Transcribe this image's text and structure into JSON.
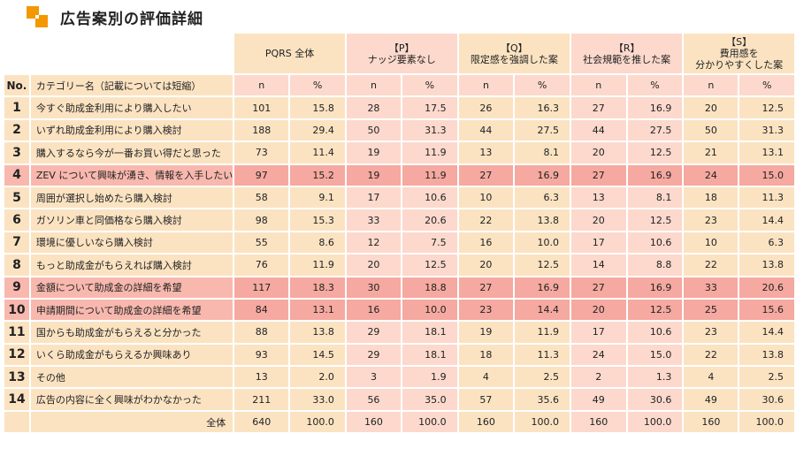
{
  "title": "広告案別の評価詳細",
  "columns": {
    "no": "No.",
    "category": "カテゴリー名（記載については短縮）",
    "groups": [
      {
        "line1": "PQRS 全体",
        "line2": ""
      },
      {
        "line1": "【P】",
        "line2": "ナッジ要素なし"
      },
      {
        "line1": "【Q】",
        "line2": "限定感を強調した案"
      },
      {
        "line1": "【R】",
        "line2": "社会規範を推した案"
      },
      {
        "line1": "【S】",
        "line2": "費用感を\n分かりやすくした案"
      }
    ],
    "n": "n",
    "pct": "%"
  },
  "rows": [
    {
      "no": "1",
      "label": "今すぐ助成金利用により購入したい",
      "vals": [
        "101",
        "15.8",
        "28",
        "17.5",
        "26",
        "16.3",
        "27",
        "16.9",
        "20",
        "12.5"
      ]
    },
    {
      "no": "2",
      "label": "いずれ助成金利用により購入検討",
      "vals": [
        "188",
        "29.4",
        "50",
        "31.3",
        "44",
        "27.5",
        "44",
        "27.5",
        "50",
        "31.3"
      ]
    },
    {
      "no": "3",
      "label": "購入するなら今が一番お買い得だと思った",
      "vals": [
        "73",
        "11.4",
        "19",
        "11.9",
        "13",
        "8.1",
        "20",
        "12.5",
        "21",
        "13.1"
      ]
    },
    {
      "no": "4",
      "label": "ZEV について興味が湧き、情報を入手したい",
      "vals": [
        "97",
        "15.2",
        "19",
        "11.9",
        "27",
        "16.9",
        "27",
        "16.9",
        "24",
        "15.0"
      ]
    },
    {
      "no": "5",
      "label": "周囲が選択し始めたら購入検討",
      "vals": [
        "58",
        "9.1",
        "17",
        "10.6",
        "10",
        "6.3",
        "13",
        "8.1",
        "18",
        "11.3"
      ]
    },
    {
      "no": "6",
      "label": "ガソリン車と同価格なら購入検討",
      "vals": [
        "98",
        "15.3",
        "33",
        "20.6",
        "22",
        "13.8",
        "20",
        "12.5",
        "23",
        "14.4"
      ]
    },
    {
      "no": "7",
      "label": "環境に優しいなら購入検討",
      "vals": [
        "55",
        "8.6",
        "12",
        "7.5",
        "16",
        "10.0",
        "17",
        "10.6",
        "10",
        "6.3"
      ]
    },
    {
      "no": "8",
      "label": "もっと助成金がもらえれば購入検討",
      "vals": [
        "76",
        "11.9",
        "20",
        "12.5",
        "20",
        "12.5",
        "14",
        "8.8",
        "22",
        "13.8"
      ]
    },
    {
      "no": "9",
      "label": "金額について助成金の詳細を希望",
      "vals": [
        "117",
        "18.3",
        "30",
        "18.8",
        "27",
        "16.9",
        "27",
        "16.9",
        "33",
        "20.6"
      ]
    },
    {
      "no": "10",
      "label": "申請期間について助成金の詳細を希望",
      "vals": [
        "84",
        "13.1",
        "16",
        "10.0",
        "23",
        "14.4",
        "20",
        "12.5",
        "25",
        "15.6"
      ]
    },
    {
      "no": "11",
      "label": "国からも助成金がもらえると分かった",
      "vals": [
        "88",
        "13.8",
        "29",
        "18.1",
        "19",
        "11.9",
        "17",
        "10.6",
        "23",
        "14.4"
      ]
    },
    {
      "no": "12",
      "label": "いくら助成金がもらえるか興味あり",
      "vals": [
        "93",
        "14.5",
        "29",
        "18.1",
        "18",
        "11.3",
        "24",
        "15.0",
        "22",
        "13.8"
      ]
    },
    {
      "no": "13",
      "label": "その他",
      "vals": [
        "13",
        "2.0",
        "3",
        "1.9",
        "4",
        "2.5",
        "2",
        "1.3",
        "4",
        "2.5"
      ]
    },
    {
      "no": "14",
      "label": "広告の内容に全く興味がわかなかった",
      "vals": [
        "211",
        "33.0",
        "56",
        "35.0",
        "57",
        "35.6",
        "49",
        "30.6",
        "49",
        "30.6"
      ]
    }
  ],
  "total": {
    "label": "全体",
    "vals": [
      "640",
      "100.0",
      "160",
      "100.0",
      "160",
      "100.0",
      "160",
      "100.0",
      "160",
      "100.0"
    ]
  },
  "highlighted_rows": [
    "4",
    "9",
    "10"
  ],
  "colors": {
    "base_a": "#fbe3c2",
    "base_b": "#fcd9cc",
    "highlight": "#f8b8ae",
    "logo": "#f39800"
  }
}
